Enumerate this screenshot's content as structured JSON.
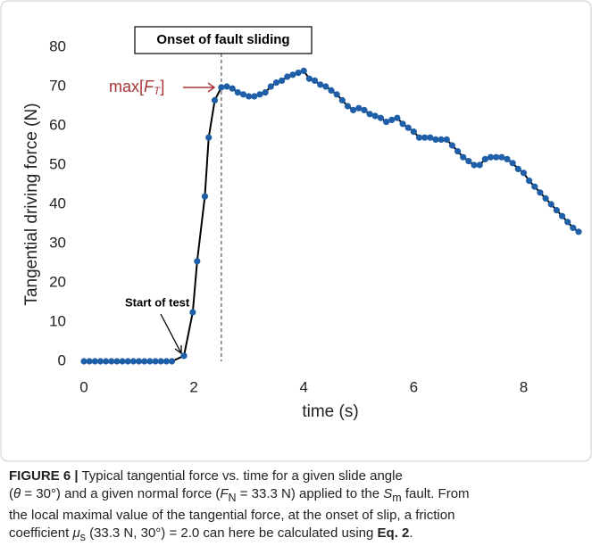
{
  "chart_data": {
    "type": "line",
    "ylabel": "Tangential driving force  (N)",
    "xlabel": "time  (s)",
    "xlim": [
      0,
      9
    ],
    "ylim": [
      0,
      80
    ],
    "xticks": [
      0,
      2,
      4,
      6,
      8
    ],
    "yticks": [
      0,
      10,
      20,
      30,
      40,
      50,
      60,
      70,
      80
    ],
    "color": "#1f5fa8",
    "line_color": "#000000",
    "onset_label": "Onset of fault sliding",
    "onset_x": 2.5,
    "start_label": "Start of test",
    "max_label": [
      "max[",
      "F",
      "T",
      "]"
    ],
    "x": [
      0,
      0.1,
      0.2,
      0.3,
      0.4,
      0.5,
      0.6,
      0.7,
      0.8,
      0.9,
      1.0,
      1.1,
      1.2,
      1.3,
      1.4,
      1.5,
      1.6,
      1.82,
      1.98,
      2.06,
      2.2,
      2.27,
      2.38,
      2.5,
      2.6,
      2.7,
      2.8,
      2.9,
      3.0,
      3.1,
      3.2,
      3.3,
      3.4,
      3.5,
      3.6,
      3.7,
      3.8,
      3.9,
      4.0,
      4.1,
      4.2,
      4.3,
      4.4,
      4.5,
      4.6,
      4.7,
      4.8,
      4.9,
      5.0,
      5.1,
      5.2,
      5.3,
      5.4,
      5.5,
      5.6,
      5.7,
      5.8,
      5.9,
      6.0,
      6.1,
      6.2,
      6.3,
      6.4,
      6.5,
      6.6,
      6.7,
      6.8,
      6.9,
      7.0,
      7.1,
      7.2,
      7.3,
      7.4,
      7.5,
      7.6,
      7.7,
      7.8,
      7.9,
      8.0,
      8.1,
      8.2,
      8.3,
      8.4,
      8.5,
      8.6,
      8.7,
      8.8,
      8.9,
      9.0
    ],
    "values": [
      0,
      0,
      0,
      0,
      0,
      0,
      0,
      0,
      0,
      0,
      0,
      0,
      0,
      0,
      0,
      0,
      0,
      1.4,
      12.5,
      25.5,
      42,
      57,
      66.5,
      69.8,
      70,
      69.5,
      68.5,
      68,
      67.5,
      67.5,
      68,
      68.5,
      70,
      71,
      71.5,
      72.5,
      73,
      73.5,
      74,
      72,
      71.5,
      70.5,
      70,
      69,
      68,
      66.5,
      65,
      64,
      64.5,
      64,
      63,
      62.5,
      62,
      61,
      61.5,
      62,
      60.5,
      59.5,
      58.5,
      57,
      57,
      57,
      56.5,
      56.5,
      56.5,
      55,
      53.5,
      52,
      51,
      50,
      50,
      51.5,
      52,
      52,
      52,
      51.5,
      50.5,
      49,
      48,
      46,
      44.5,
      43,
      41.5,
      40,
      38.5,
      37,
      35.5,
      34,
      33
    ]
  },
  "caption": {
    "segments": [
      "FIGURE 6 |",
      " Typical tangential force vs. time for a given slide angle",
      "(",
      "θ",
      " = 30°) and a given normal force (",
      "F",
      "N",
      " = 33.3 N) applied to the ",
      "S",
      "m",
      " fault. From",
      "the local maximal value of the tangential force, at the onset of slip, a friction",
      "coefficient ",
      "μ",
      "s",
      " (33.3 N, 30°) = 2.0 can here be calculated using ",
      "Eq. 2",
      "."
    ]
  }
}
